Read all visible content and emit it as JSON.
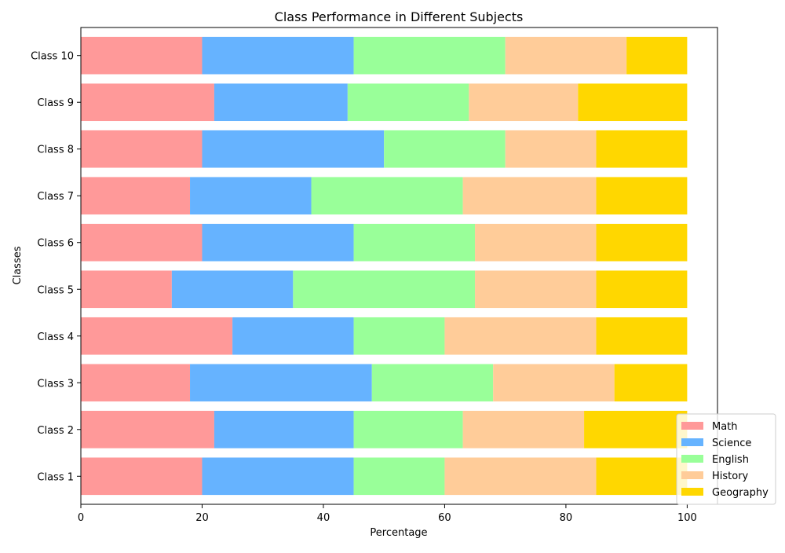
{
  "chart_data": {
    "type": "bar",
    "orientation": "horizontal",
    "stacked": true,
    "title": "Class Performance in Different Subjects",
    "xlabel": "Percentage",
    "ylabel": "Classes",
    "xlim": [
      0,
      105
    ],
    "xticks": [
      0,
      20,
      40,
      60,
      80,
      100
    ],
    "grid": false,
    "legend_position": "lower-right",
    "categories": [
      "Class 1",
      "Class 2",
      "Class 3",
      "Class 4",
      "Class 5",
      "Class 6",
      "Class 7",
      "Class 8",
      "Class 9",
      "Class 10"
    ],
    "series": [
      {
        "name": "Math",
        "color": "#ff9999",
        "values": [
          20,
          22,
          18,
          25,
          15,
          20,
          18,
          20,
          22,
          20
        ]
      },
      {
        "name": "Science",
        "color": "#66b3ff",
        "values": [
          25,
          23,
          30,
          20,
          20,
          25,
          20,
          30,
          22,
          25
        ]
      },
      {
        "name": "English",
        "color": "#99ff99",
        "values": [
          15,
          18,
          20,
          15,
          30,
          20,
          25,
          20,
          20,
          25
        ]
      },
      {
        "name": "History",
        "color": "#ffcc99",
        "values": [
          25,
          20,
          20,
          25,
          20,
          20,
          22,
          15,
          18,
          20
        ]
      },
      {
        "name": "Geography",
        "color": "#ffd700",
        "values": [
          15,
          17,
          12,
          15,
          15,
          15,
          15,
          15,
          18,
          10
        ]
      }
    ]
  }
}
